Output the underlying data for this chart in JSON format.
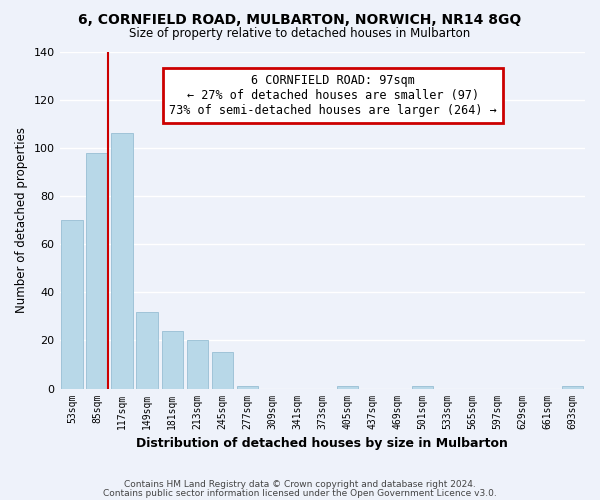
{
  "title": "6, CORNFIELD ROAD, MULBARTON, NORWICH, NR14 8GQ",
  "subtitle": "Size of property relative to detached houses in Mulbarton",
  "xlabel": "Distribution of detached houses by size in Mulbarton",
  "ylabel": "Number of detached properties",
  "bar_labels": [
    "53sqm",
    "85sqm",
    "117sqm",
    "149sqm",
    "181sqm",
    "213sqm",
    "245sqm",
    "277sqm",
    "309sqm",
    "341sqm",
    "373sqm",
    "405sqm",
    "437sqm",
    "469sqm",
    "501sqm",
    "533sqm",
    "565sqm",
    "597sqm",
    "629sqm",
    "661sqm",
    "693sqm"
  ],
  "bar_values": [
    70,
    98,
    106,
    32,
    24,
    20,
    15,
    1,
    0,
    0,
    0,
    1,
    0,
    0,
    1,
    0,
    0,
    0,
    0,
    0,
    1
  ],
  "bar_color": "#b8d8e8",
  "bar_edge_color": "#a0c4d8",
  "annotation_line1": "6 CORNFIELD ROAD: 97sqm",
  "annotation_line2": "← 27% of detached houses are smaller (97)",
  "annotation_line3": "73% of semi-detached houses are larger (264) →",
  "annotation_box_color": "#ffffff",
  "annotation_box_edge": "#cc0000",
  "vline_color": "#cc0000",
  "footer1": "Contains HM Land Registry data © Crown copyright and database right 2024.",
  "footer2": "Contains public sector information licensed under the Open Government Licence v3.0.",
  "ylim": [
    0,
    140
  ],
  "bg_color": "#eef2fa"
}
